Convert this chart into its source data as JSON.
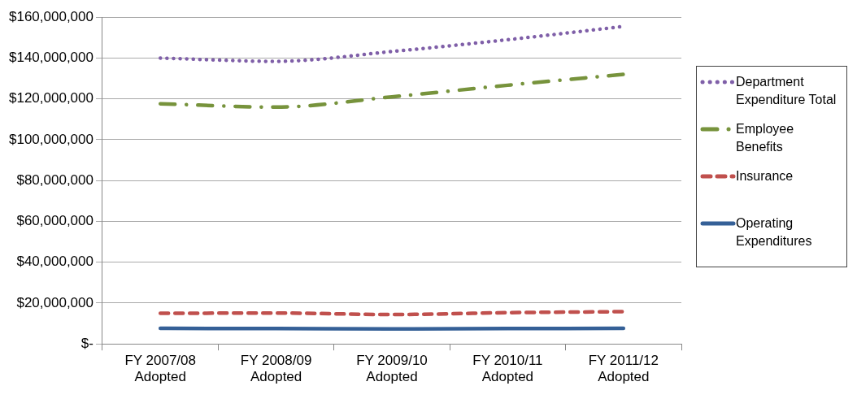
{
  "chart_data": {
    "type": "line",
    "categories": [
      "FY 2007/08 Adopted",
      "FY 2008/09 Adopted",
      "FY 2009/10 Adopted",
      "FY 2010/11 Adopted",
      "FY 2011/12 Adopted"
    ],
    "series": [
      {
        "name": "Department Expenditure Total",
        "color": "#7f5fa8",
        "line_style": "dotted",
        "values": [
          140000000,
          138400000,
          143200000,
          149000000,
          155500000
        ]
      },
      {
        "name": "Employee Benefits",
        "color": "#77933c",
        "line_style": "dashdot",
        "values": [
          117600000,
          116000000,
          121000000,
          126700000,
          132000000
        ]
      },
      {
        "name": "Insurance",
        "color": "#c0504d",
        "line_style": "dashed",
        "values": [
          15000000,
          15100000,
          14400000,
          15300000,
          15800000
        ]
      },
      {
        "name": "Operating Expenditures",
        "color": "#356097",
        "line_style": "solid",
        "values": [
          7600000,
          7500000,
          7300000,
          7500000,
          7600000
        ]
      }
    ],
    "ylim": [
      0,
      160000000
    ],
    "yticks": [
      {
        "value": 0,
        "label": "$-"
      },
      {
        "value": 20000000,
        "label": "$20,000,000"
      },
      {
        "value": 40000000,
        "label": "$40,000,000"
      },
      {
        "value": 60000000,
        "label": "$60,000,000"
      },
      {
        "value": 80000000,
        "label": "$80,000,000"
      },
      {
        "value": 100000000,
        "label": "$100,000,000"
      },
      {
        "value": 120000000,
        "label": "$120,000,000"
      },
      {
        "value": 140000000,
        "label": "$140,000,000"
      },
      {
        "value": 160000000,
        "label": "$160,000,000"
      }
    ],
    "grid": "y",
    "legend": "right",
    "marker": "none"
  }
}
